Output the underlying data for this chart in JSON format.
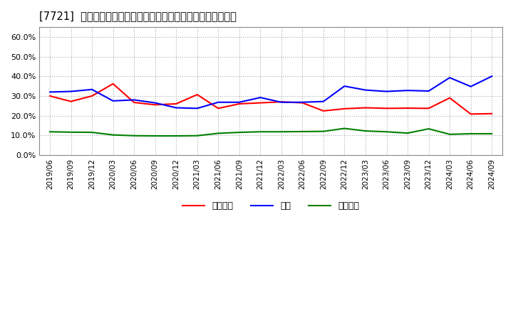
{
  "title": "[7721]  売上債権、在庫、買入債務の総資産に対する比率の推移",
  "dates": [
    "2019/06",
    "2019/09",
    "2019/12",
    "2020/03",
    "2020/06",
    "2020/09",
    "2020/12",
    "2021/03",
    "2021/06",
    "2021/09",
    "2021/12",
    "2022/03",
    "2022/06",
    "2022/09",
    "2022/12",
    "2023/03",
    "2023/06",
    "2023/09",
    "2023/12",
    "2024/03",
    "2024/06",
    "2024/09"
  ],
  "urikake": [
    0.3,
    0.272,
    0.3,
    0.362,
    0.267,
    0.255,
    0.26,
    0.307,
    0.237,
    0.26,
    0.265,
    0.27,
    0.265,
    0.224,
    0.235,
    0.24,
    0.237,
    0.238,
    0.237,
    0.29,
    0.208,
    0.21
  ],
  "zaiko": [
    0.32,
    0.323,
    0.333,
    0.275,
    0.28,
    0.265,
    0.24,
    0.237,
    0.268,
    0.268,
    0.292,
    0.268,
    0.268,
    0.272,
    0.35,
    0.33,
    0.323,
    0.328,
    0.325,
    0.393,
    0.348,
    0.4
  ],
  "kaiire": [
    0.118,
    0.116,
    0.115,
    0.102,
    0.098,
    0.097,
    0.097,
    0.098,
    0.11,
    0.115,
    0.118,
    0.118,
    0.119,
    0.12,
    0.135,
    0.122,
    0.118,
    0.111,
    0.133,
    0.105,
    0.108,
    0.108
  ],
  "urikake_color": "#ff0000",
  "zaiko_color": "#0000ff",
  "kaiire_color": "#008000",
  "ylim": [
    0.0,
    0.65
  ],
  "yticks": [
    0.0,
    0.1,
    0.2,
    0.3,
    0.4,
    0.5,
    0.6
  ],
  "background_color": "#ffffff",
  "grid_color": "#aaaaaa",
  "legend_labels": [
    "売上債権",
    "在庫",
    "買入債務"
  ]
}
